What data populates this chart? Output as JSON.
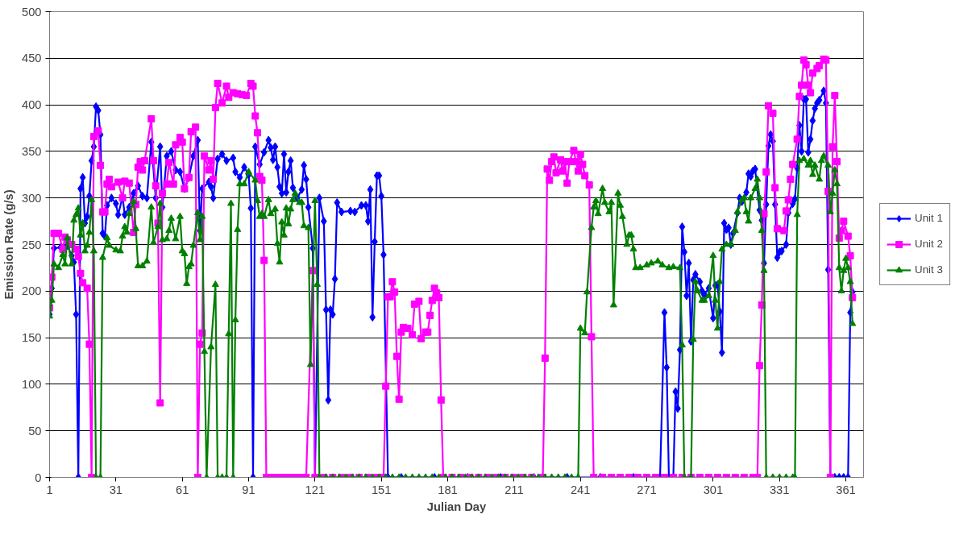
{
  "chart_data": {
    "type": "line",
    "xlabel": "Julian Day",
    "ylabel": "Emission Rate (g/s)",
    "xlim": [
      1,
      369
    ],
    "xticks": [
      1,
      31,
      61,
      91,
      121,
      151,
      181,
      211,
      241,
      271,
      301,
      331,
      361
    ],
    "ylim": [
      0,
      500
    ],
    "yticks": [
      0,
      50,
      100,
      150,
      200,
      250,
      300,
      350,
      400,
      450,
      500
    ],
    "grid": "y",
    "legend": "right",
    "series": [
      {
        "name": "Unit 1",
        "color": "#0000ff",
        "marker": "diamond",
        "x": [
          1,
          2,
          3,
          6,
          9,
          11,
          12,
          13,
          14,
          15,
          16,
          17,
          18,
          19,
          20,
          21,
          22,
          23,
          24,
          25,
          26,
          27,
          29,
          31,
          32,
          34,
          35,
          37,
          39,
          41,
          43,
          45,
          47,
          49,
          51,
          52,
          54,
          56,
          58,
          60,
          62,
          64,
          66,
          68,
          69,
          70,
          73,
          74,
          75,
          77,
          79,
          81,
          84,
          85,
          87,
          89,
          91,
          92,
          93,
          94,
          96,
          98,
          100,
          101,
          102,
          103,
          104,
          105,
          106,
          107,
          108,
          109,
          110,
          111,
          113,
          115,
          116,
          117,
          118,
          120,
          121,
          123,
          125,
          126,
          127,
          128,
          129,
          130,
          131,
          133,
          137,
          139,
          142,
          144,
          145,
          146,
          147,
          148,
          149,
          150,
          151,
          152,
          154,
          160,
          175,
          190,
          205,
          220,
          235,
          250,
          265,
          277,
          279,
          280,
          281,
          283,
          284,
          285,
          286,
          287,
          288,
          289,
          290,
          291,
          292,
          293,
          295,
          296,
          297,
          299,
          301,
          302,
          303,
          304,
          305,
          306,
          307,
          308,
          309,
          310,
          312,
          313,
          314,
          316,
          317,
          318,
          319,
          320,
          322,
          323,
          324,
          325,
          326,
          327,
          328,
          329,
          330,
          331,
          332,
          334,
          335,
          337,
          338,
          339,
          340,
          341,
          342,
          343,
          344,
          345,
          346,
          347,
          348,
          349,
          351,
          352,
          353,
          354,
          356,
          358,
          360,
          362,
          363,
          364
        ],
        "values": [
          175,
          203,
          246,
          247,
          249,
          238,
          231,
          175,
          0,
          310,
          322,
          273,
          280,
          302,
          340,
          355,
          398,
          394,
          368,
          262,
          259,
          292,
          300,
          294,
          282,
          301,
          282,
          290,
          305,
          313,
          302,
          300,
          360,
          300,
          355,
          290,
          345,
          350,
          330,
          328,
          310,
          322,
          345,
          362,
          265,
          310,
          317,
          312,
          300,
          342,
          347,
          340,
          343,
          328,
          322,
          333,
          325,
          289,
          0,
          355,
          336,
          349,
          362,
          354,
          341,
          355,
          333,
          312,
          305,
          347,
          306,
          328,
          340,
          311,
          300,
          309,
          335,
          320,
          290,
          246,
          0,
          300,
          275,
          180,
          83,
          180,
          175,
          213,
          295,
          285,
          286,
          285,
          292,
          292,
          275,
          309,
          172,
          253,
          324,
          324,
          302,
          239,
          0,
          0,
          0,
          0,
          0,
          0,
          0,
          0,
          0,
          0,
          177,
          118,
          0,
          0,
          92,
          74,
          137,
          269,
          242,
          195,
          230,
          146,
          212,
          218,
          210,
          200,
          196,
          203,
          171,
          206,
          207,
          178,
          134,
          273,
          266,
          268,
          250,
          262,
          284,
          300,
          296,
          306,
          326,
          323,
          329,
          331,
          287,
          276,
          230,
          293,
          356,
          368,
          361,
          293,
          236,
          242,
          243,
          250,
          284,
          294,
          299,
          332,
          378,
          350,
          406,
          406,
          349,
          363,
          383,
          396,
          402,
          405,
          415,
          402,
          223,
          0,
          0,
          0,
          0,
          0,
          177,
          199
        ]
      },
      {
        "name": "Unit 2",
        "color": "#ff00ff",
        "marker": "square",
        "x": [
          1,
          2,
          3,
          5,
          7,
          8,
          9,
          11,
          13,
          14,
          15,
          16,
          18,
          19,
          20,
          21,
          23,
          24,
          25,
          26,
          27,
          28,
          29,
          32,
          34,
          35,
          37,
          39,
          40,
          41,
          42,
          43,
          44,
          47,
          48,
          49,
          50,
          51,
          52,
          54,
          55,
          57,
          58,
          60,
          61,
          62,
          64,
          65,
          67,
          68,
          69,
          70,
          71,
          73,
          74,
          75,
          76,
          77,
          79,
          81,
          82,
          84,
          86,
          88,
          90,
          92,
          93,
          94,
          95,
          96,
          97,
          98,
          99,
          102,
          105,
          108,
          111,
          114,
          117,
          120,
          121,
          125,
          129,
          133,
          137,
          141,
          145,
          149,
          152,
          153,
          154,
          155,
          156,
          157,
          158,
          159,
          160,
          161,
          163,
          165,
          166,
          168,
          169,
          171,
          172,
          173,
          174,
          175,
          176,
          177,
          178,
          179,
          183,
          187,
          191,
          195,
          199,
          203,
          207,
          211,
          215,
          219,
          224,
          225,
          226,
          227,
          228,
          229,
          230,
          232,
          233,
          234,
          235,
          236,
          238,
          239,
          240,
          241,
          242,
          243,
          245,
          246,
          247,
          251,
          255,
          259,
          263,
          267,
          271,
          275,
          279,
          283,
          287,
          291,
          295,
          299,
          303,
          307,
          311,
          315,
          319,
          321,
          322,
          323,
          324,
          325,
          326,
          328,
          329,
          330,
          333,
          334,
          335,
          336,
          337,
          339,
          340,
          341,
          342,
          343,
          344,
          345,
          346,
          348,
          349,
          351,
          352,
          353,
          354,
          355,
          356,
          357,
          358,
          359,
          360,
          362,
          363,
          364
        ],
        "values": [
          182,
          215,
          262,
          262,
          245,
          258,
          255,
          250,
          245,
          237,
          219,
          209,
          203,
          143,
          0,
          366,
          372,
          335,
          285,
          285,
          315,
          320,
          312,
          317,
          300,
          318,
          316,
          263,
          293,
          333,
          339,
          330,
          340,
          385,
          340,
          313,
          273,
          80,
          305,
          315,
          338,
          315,
          357,
          365,
          360,
          310,
          322,
          371,
          376,
          0,
          143,
          155,
          345,
          330,
          340,
          320,
          397,
          423,
          402,
          420,
          408,
          413,
          412,
          411,
          410,
          423,
          420,
          388,
          370,
          323,
          319,
          233,
          0,
          0,
          0,
          0,
          0,
          0,
          0,
          222,
          0,
          0,
          0,
          0,
          0,
          0,
          0,
          0,
          0,
          98,
          194,
          194,
          210,
          199,
          130,
          84,
          156,
          161,
          160,
          153,
          186,
          189,
          149,
          156,
          156,
          174,
          190,
          203,
          198,
          193,
          83,
          0,
          0,
          0,
          0,
          0,
          0,
          0,
          0,
          0,
          0,
          0,
          0,
          128,
          331,
          319,
          339,
          344,
          327,
          341,
          329,
          339,
          316,
          339,
          351,
          339,
          329,
          347,
          336,
          324,
          314,
          151,
          0,
          0,
          0,
          0,
          0,
          0,
          0,
          0,
          0,
          0,
          0,
          0,
          0,
          0,
          0,
          0,
          0,
          0,
          0,
          0,
          120,
          185,
          283,
          328,
          399,
          391,
          311,
          267,
          265,
          286,
          298,
          320,
          336,
          363,
          409,
          421,
          448,
          443,
          421,
          413,
          434,
          439,
          442,
          449,
          448,
          307,
          0,
          355,
          410,
          339,
          257,
          265,
          275,
          259,
          238,
          193
        ]
      },
      {
        "name": "Unit 3",
        "color": "#008000",
        "marker": "triangle",
        "x": [
          1,
          2,
          3,
          5,
          7,
          8,
          9,
          11,
          12,
          13,
          14,
          15,
          16,
          17,
          18,
          19,
          20,
          21,
          22,
          24,
          25,
          27,
          28,
          31,
          33,
          34,
          35,
          36,
          37,
          39,
          40,
          41,
          43,
          45,
          47,
          48,
          50,
          51,
          52,
          54,
          55,
          56,
          58,
          60,
          61,
          62,
          63,
          64,
          65,
          66,
          68,
          69,
          70,
          71,
          72,
          74,
          76,
          77,
          79,
          81,
          82,
          83,
          84,
          85,
          86,
          87,
          89,
          91,
          94,
          95,
          96,
          97,
          98,
          100,
          101,
          103,
          104,
          105,
          106,
          107,
          108,
          109,
          110,
          111,
          112,
          114,
          115,
          116,
          118,
          119,
          121,
          122,
          123,
          126,
          129,
          132,
          135,
          138,
          141,
          144,
          147,
          150,
          153,
          156,
          159,
          162,
          165,
          168,
          171,
          174,
          177,
          180,
          183,
          186,
          189,
          192,
          195,
          198,
          201,
          204,
          207,
          210,
          213,
          216,
          219,
          222,
          225,
          228,
          231,
          234,
          237,
          240,
          241,
          243,
          244,
          246,
          247,
          248,
          249,
          251,
          252,
          254,
          255,
          256,
          258,
          259,
          260,
          262,
          263,
          264,
          265,
          266,
          268,
          271,
          273,
          276,
          278,
          281,
          283,
          286,
          287,
          288,
          291,
          292,
          293,
          294,
          296,
          297,
          299,
          301,
          302,
          303,
          304,
          305,
          307,
          309,
          311,
          312,
          314,
          315,
          316,
          317,
          318,
          320,
          321,
          322,
          323,
          324,
          325,
          328,
          331,
          334,
          337,
          338,
          339,
          340,
          342,
          344,
          345,
          346,
          347,
          349,
          350,
          351,
          353,
          354,
          355,
          356,
          357,
          358,
          359,
          360,
          361,
          362,
          363,
          364
        ],
        "values": [
          173,
          190,
          229,
          225,
          239,
          229,
          257,
          229,
          276,
          282,
          289,
          260,
          273,
          243,
          249,
          263,
          298,
          243,
          0,
          0,
          236,
          257,
          249,
          244,
          243,
          259,
          269,
          263,
          283,
          296,
          267,
          227,
          227,
          232,
          290,
          252,
          269,
          294,
          255,
          256,
          265,
          278,
          256,
          280,
          243,
          240,
          208,
          226,
          229,
          249,
          284,
          255,
          280,
          135,
          0,
          140,
          207,
          0,
          0,
          0,
          154,
          294,
          0,
          169,
          266,
          315,
          315,
          328,
          319,
          297,
          280,
          283,
          280,
          298,
          283,
          288,
          251,
          231,
          274,
          260,
          289,
          272,
          288,
          298,
          305,
          295,
          295,
          270,
          268,
          121,
          297,
          207,
          0,
          0,
          0,
          0,
          0,
          0,
          0,
          0,
          0,
          0,
          0,
          0,
          0,
          0,
          0,
          0,
          0,
          0,
          0,
          0,
          0,
          0,
          0,
          0,
          0,
          0,
          0,
          0,
          0,
          0,
          0,
          0,
          0,
          0,
          0,
          0,
          0,
          0,
          0,
          0,
          160,
          155,
          199,
          268,
          290,
          297,
          283,
          310,
          295,
          285,
          295,
          185,
          305,
          292,
          280,
          250,
          260,
          260,
          245,
          225,
          225,
          228,
          230,
          232,
          228,
          225,
          226,
          225,
          142,
          0,
          0,
          148,
          210,
          200,
          190,
          190,
          195,
          238,
          190,
          160,
          210,
          245,
          250,
          250,
          265,
          285,
          298,
          300,
          285,
          275,
          300,
          310,
          320,
          300,
          265,
          222,
          0,
          0,
          0,
          0,
          0,
          0,
          282,
          340,
          342,
          335,
          340,
          325,
          335,
          320,
          340,
          345,
          335,
          285,
          305,
          330,
          315,
          225,
          200,
          222,
          235,
          225,
          210,
          165
        ]
      }
    ]
  }
}
